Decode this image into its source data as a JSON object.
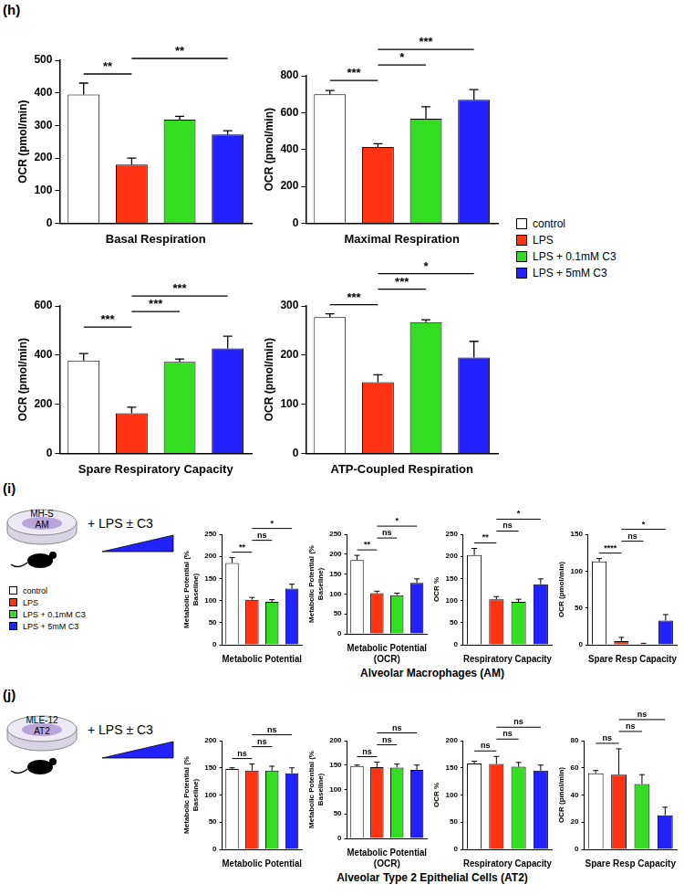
{
  "chart_data": [
    {
      "type": "bar",
      "x_label": "Basal Respiration",
      "y_label": "OCR (pmol/min)",
      "categories": [
        "control",
        "LPS",
        "LPS + 0.1mM C3",
        "LPS + 5mM C3"
      ],
      "values": [
        395,
        180,
        318,
        272
      ],
      "errors": [
        35,
        20,
        10,
        12
      ],
      "colors": [
        "#ffffff",
        "#ff3311",
        "#33dd22",
        "#2222ff"
      ],
      "ylim": [
        0,
        500
      ],
      "yticks": [
        0,
        100,
        200,
        300,
        400,
        500
      ],
      "grid": false,
      "tick_labels": "y",
      "brackets": [
        {
          "between": [
            "control",
            "LPS"
          ],
          "label": "**"
        },
        {
          "between": [
            "LPS",
            "LPS + 5mM C3"
          ],
          "label": "**"
        }
      ]
    },
    {
      "type": "bar",
      "x_label": "Maximal Respiration",
      "y_label": "OCR (pmol/min)",
      "categories": [
        "control",
        "LPS",
        "LPS + 0.1mM C3",
        "LPS + 5mM C3"
      ],
      "values": [
        700,
        413,
        567,
        670
      ],
      "errors": [
        20,
        18,
        65,
        55
      ],
      "colors": [
        "#ffffff",
        "#ff3311",
        "#33dd22",
        "#2222ff"
      ],
      "ylim": [
        0,
        800
      ],
      "yticks": [
        0,
        200,
        400,
        600,
        800
      ],
      "grid": false,
      "tick_labels": "y",
      "brackets": [
        {
          "between": [
            "control",
            "LPS"
          ],
          "label": "***"
        },
        {
          "between": [
            "LPS",
            "LPS + 0.1mM C3"
          ],
          "label": "*"
        },
        {
          "between": [
            "LPS",
            "LPS + 5mM C3"
          ],
          "label": "***"
        }
      ]
    },
    {
      "type": "bar",
      "x_label": "Spare Respiratory Capacity",
      "y_label": "OCR (pmol/min)",
      "categories": [
        "control",
        "LPS",
        "LPS + 0.1mM C3",
        "LPS + 5mM C3"
      ],
      "values": [
        378,
        163,
        372,
        427
      ],
      "errors": [
        28,
        25,
        12,
        50
      ],
      "colors": [
        "#ffffff",
        "#ff3311",
        "#33dd22",
        "#2222ff"
      ],
      "ylim": [
        0,
        600
      ],
      "yticks": [
        0,
        200,
        400,
        600
      ],
      "grid": false,
      "tick_labels": "y",
      "brackets": [
        {
          "between": [
            "control",
            "LPS"
          ],
          "label": "***"
        },
        {
          "between": [
            "LPS",
            "LPS + 0.1mM C3"
          ],
          "label": "***"
        },
        {
          "between": [
            "LPS",
            "LPS + 5mM C3"
          ],
          "label": "***"
        }
      ]
    },
    {
      "type": "bar",
      "x_label": "ATP-Coupled Respiration",
      "y_label": "OCR (pmol/min)",
      "categories": [
        "control",
        "LPS",
        "LPS + 0.1mM C3",
        "LPS + 5mM C3"
      ],
      "values": [
        277,
        145,
        267,
        195
      ],
      "errors": [
        7,
        15,
        5,
        33
      ],
      "colors": [
        "#ffffff",
        "#ff3311",
        "#33dd22",
        "#2222ff"
      ],
      "ylim": [
        0,
        300
      ],
      "yticks": [
        0,
        100,
        200,
        300
      ],
      "grid": false,
      "tick_labels": "y",
      "brackets": [
        {
          "between": [
            "control",
            "LPS"
          ],
          "label": "***"
        },
        {
          "between": [
            "LPS",
            "LPS + 0.1mM C3"
          ],
          "label": "***"
        },
        {
          "between": [
            "LPS",
            "LPS + 5mM C3"
          ],
          "label": "*"
        }
      ]
    },
    {
      "type": "bar",
      "x_label": "Metabolic Potential",
      "y_label": "Metabolic Potential (% Baseline)",
      "categories": [
        "control",
        "LPS",
        "LPS + 0.1mM C3",
        "LPS + 5mM C3"
      ],
      "values": [
        185,
        102,
        97,
        127
      ],
      "errors": [
        12,
        5,
        5,
        10
      ],
      "colors": [
        "#ffffff",
        "#ff3311",
        "#33dd22",
        "#2222ff"
      ],
      "ylim": [
        0,
        250
      ],
      "yticks": [
        0,
        50,
        100,
        150,
        200,
        250
      ],
      "grid": false,
      "tick_labels": "y",
      "brackets": [
        {
          "between": [
            "control",
            "LPS"
          ],
          "label": "**"
        },
        {
          "between": [
            "LPS",
            "LPS + 0.1mM C3"
          ],
          "label": "ns"
        },
        {
          "between": [
            "LPS",
            "LPS + 5mM C3"
          ],
          "label": "*"
        }
      ]
    },
    {
      "type": "bar",
      "x_label": "Metabolic Potential (OCR)",
      "y_label": "Metabolic Potential (% Baseline)",
      "categories": [
        "control",
        "LPS",
        "LPS + 0.1mM C3",
        "LPS + 5mM C3"
      ],
      "values": [
        185,
        102,
        97,
        128
      ],
      "errors": [
        12,
        5,
        5,
        10
      ],
      "colors": [
        "#ffffff",
        "#ff3311",
        "#33dd22",
        "#2222ff"
      ],
      "ylim": [
        0,
        250
      ],
      "yticks": [
        0,
        50,
        100,
        150,
        200,
        250
      ],
      "grid": false,
      "tick_labels": "y",
      "brackets": [
        {
          "between": [
            "control",
            "LPS"
          ],
          "label": "**"
        },
        {
          "between": [
            "LPS",
            "LPS + 0.1mM C3"
          ],
          "label": "ns"
        },
        {
          "between": [
            "LPS",
            "LPS + 5mM C3"
          ],
          "label": "*"
        }
      ]
    },
    {
      "type": "bar",
      "x_label": "Respiratory Capacity",
      "y_label": "OCR %",
      "categories": [
        "control",
        "LPS",
        "LPS + 0.1mM C3",
        "LPS + 5mM C3"
      ],
      "values": [
        203,
        103,
        97,
        137
      ],
      "errors": [
        15,
        6,
        6,
        12
      ],
      "colors": [
        "#ffffff",
        "#ff3311",
        "#33dd22",
        "#2222ff"
      ],
      "ylim": [
        0,
        250
      ],
      "yticks": [
        0,
        50,
        100,
        150,
        200,
        250
      ],
      "grid": false,
      "tick_labels": "y",
      "brackets": [
        {
          "between": [
            "control",
            "LPS"
          ],
          "label": "**"
        },
        {
          "between": [
            "LPS",
            "LPS + 0.1mM C3"
          ],
          "label": "ns"
        },
        {
          "between": [
            "LPS",
            "LPS + 5mM C3"
          ],
          "label": "*"
        }
      ]
    },
    {
      "type": "bar",
      "x_label": "Spare Resp Capacity",
      "y_label": "OCR (pmol/min)",
      "categories": [
        "control",
        "LPS",
        "LPS + 0.1mM C3",
        "LPS + 5mM C3"
      ],
      "values": [
        113,
        5,
        1,
        33
      ],
      "errors": [
        4,
        5,
        1,
        8
      ],
      "colors": [
        "#ffffff",
        "#ff3311",
        "#33dd22",
        "#2222ff"
      ],
      "ylim": [
        0,
        150
      ],
      "yticks": [
        0,
        50,
        100,
        150
      ],
      "grid": false,
      "tick_labels": "y",
      "brackets": [
        {
          "between": [
            "control",
            "LPS"
          ],
          "label": "****"
        },
        {
          "between": [
            "LPS",
            "LPS + 0.1mM C3"
          ],
          "label": "ns"
        },
        {
          "between": [
            "LPS",
            "LPS + 5mM C3"
          ],
          "label": "*"
        }
      ]
    },
    {
      "type": "bar",
      "x_label": "Metabolic Potential",
      "y_label": "Metabolic Potential (% Baseline)",
      "categories": [
        "control",
        "LPS",
        "LPS + 0.1mM C3",
        "LPS + 5mM C3"
      ],
      "values": [
        148,
        145,
        145,
        140
      ],
      "errors": [
        2,
        12,
        8,
        10
      ],
      "colors": [
        "#ffffff",
        "#ff3311",
        "#33dd22",
        "#2222ff"
      ],
      "ylim": [
        0,
        200
      ],
      "yticks": [
        0,
        50,
        100,
        150,
        200
      ],
      "grid": false,
      "tick_labels": "y",
      "brackets": [
        {
          "between": [
            "control",
            "LPS"
          ],
          "label": "ns"
        },
        {
          "between": [
            "LPS",
            "LPS + 0.1mM C3"
          ],
          "label": "ns"
        },
        {
          "between": [
            "LPS",
            "LPS + 5mM C3"
          ],
          "label": "ns"
        }
      ]
    },
    {
      "type": "bar",
      "x_label": "Metabolic Potential (OCR)",
      "y_label": "Metabolic Potential (% Baseline)",
      "categories": [
        "control",
        "LPS",
        "LPS + 0.1mM C3",
        "LPS + 5mM C3"
      ],
      "values": [
        148,
        146,
        145,
        140
      ],
      "errors": [
        2,
        10,
        7,
        10
      ],
      "colors": [
        "#ffffff",
        "#ff3311",
        "#33dd22",
        "#2222ff"
      ],
      "ylim": [
        0,
        200
      ],
      "yticks": [
        0,
        50,
        100,
        150,
        200
      ],
      "grid": false,
      "tick_labels": "y",
      "brackets": [
        {
          "between": [
            "control",
            "LPS"
          ],
          "label": "ns"
        },
        {
          "between": [
            "LPS",
            "LPS + 0.1mM C3"
          ],
          "label": "ns"
        },
        {
          "between": [
            "LPS",
            "LPS + 5mM C3"
          ],
          "label": "ns"
        }
      ]
    },
    {
      "type": "bar",
      "x_label": "Respiratory Capacity",
      "y_label": "OCR %",
      "categories": [
        "control",
        "LPS",
        "LPS + 0.1mM C3",
        "LPS + 5mM C3"
      ],
      "values": [
        158,
        157,
        152,
        145
      ],
      "errors": [
        4,
        14,
        8,
        10
      ],
      "colors": [
        "#ffffff",
        "#ff3311",
        "#33dd22",
        "#2222ff"
      ],
      "ylim": [
        0,
        200
      ],
      "yticks": [
        0,
        50,
        100,
        150,
        200
      ],
      "grid": false,
      "tick_labels": "y",
      "brackets": [
        {
          "between": [
            "control",
            "LPS"
          ],
          "label": "ns"
        },
        {
          "between": [
            "LPS",
            "LPS + 0.1mM C3"
          ],
          "label": "ns"
        },
        {
          "between": [
            "LPS",
            "LPS + 5mM C3"
          ],
          "label": "ns"
        }
      ]
    },
    {
      "type": "bar",
      "x_label": "Spare Resp Capacity",
      "y_label": "OCR (pmol/min)",
      "categories": [
        "control",
        "LPS",
        "LPS + 0.1mM C3",
        "LPS + 5mM C3"
      ],
      "values": [
        56,
        55,
        48,
        25
      ],
      "errors": [
        2,
        19,
        7,
        6
      ],
      "colors": [
        "#ffffff",
        "#ff3311",
        "#33dd22",
        "#2222ff"
      ],
      "ylim": [
        0,
        80
      ],
      "yticks": [
        0,
        20,
        40,
        60,
        80
      ],
      "grid": false,
      "tick_labels": "y",
      "brackets": [
        {
          "between": [
            "control",
            "LPS"
          ],
          "label": "ns"
        },
        {
          "between": [
            "LPS",
            "LPS + 0.1mM C3"
          ],
          "label": "ns"
        },
        {
          "between": [
            "LPS",
            "LPS + 5mM C3"
          ],
          "label": "ns"
        }
      ]
    }
  ],
  "panels": [
    {
      "letter": "(h)",
      "legend": "right"
    },
    {
      "letter": "(i)",
      "cell_line": "MH-S",
      "cell_type": "AM",
      "treatment": "+ LPS ± C3",
      "legend": "left",
      "caption": "Alveolar Macrophages (AM)"
    },
    {
      "letter": "(j)",
      "cell_line": "MLE-12",
      "cell_type": "AT2",
      "treatment": "+ LPS ± C3",
      "caption": "Alveolar Type 2 Epithelial Cells (AT2)"
    }
  ]
}
